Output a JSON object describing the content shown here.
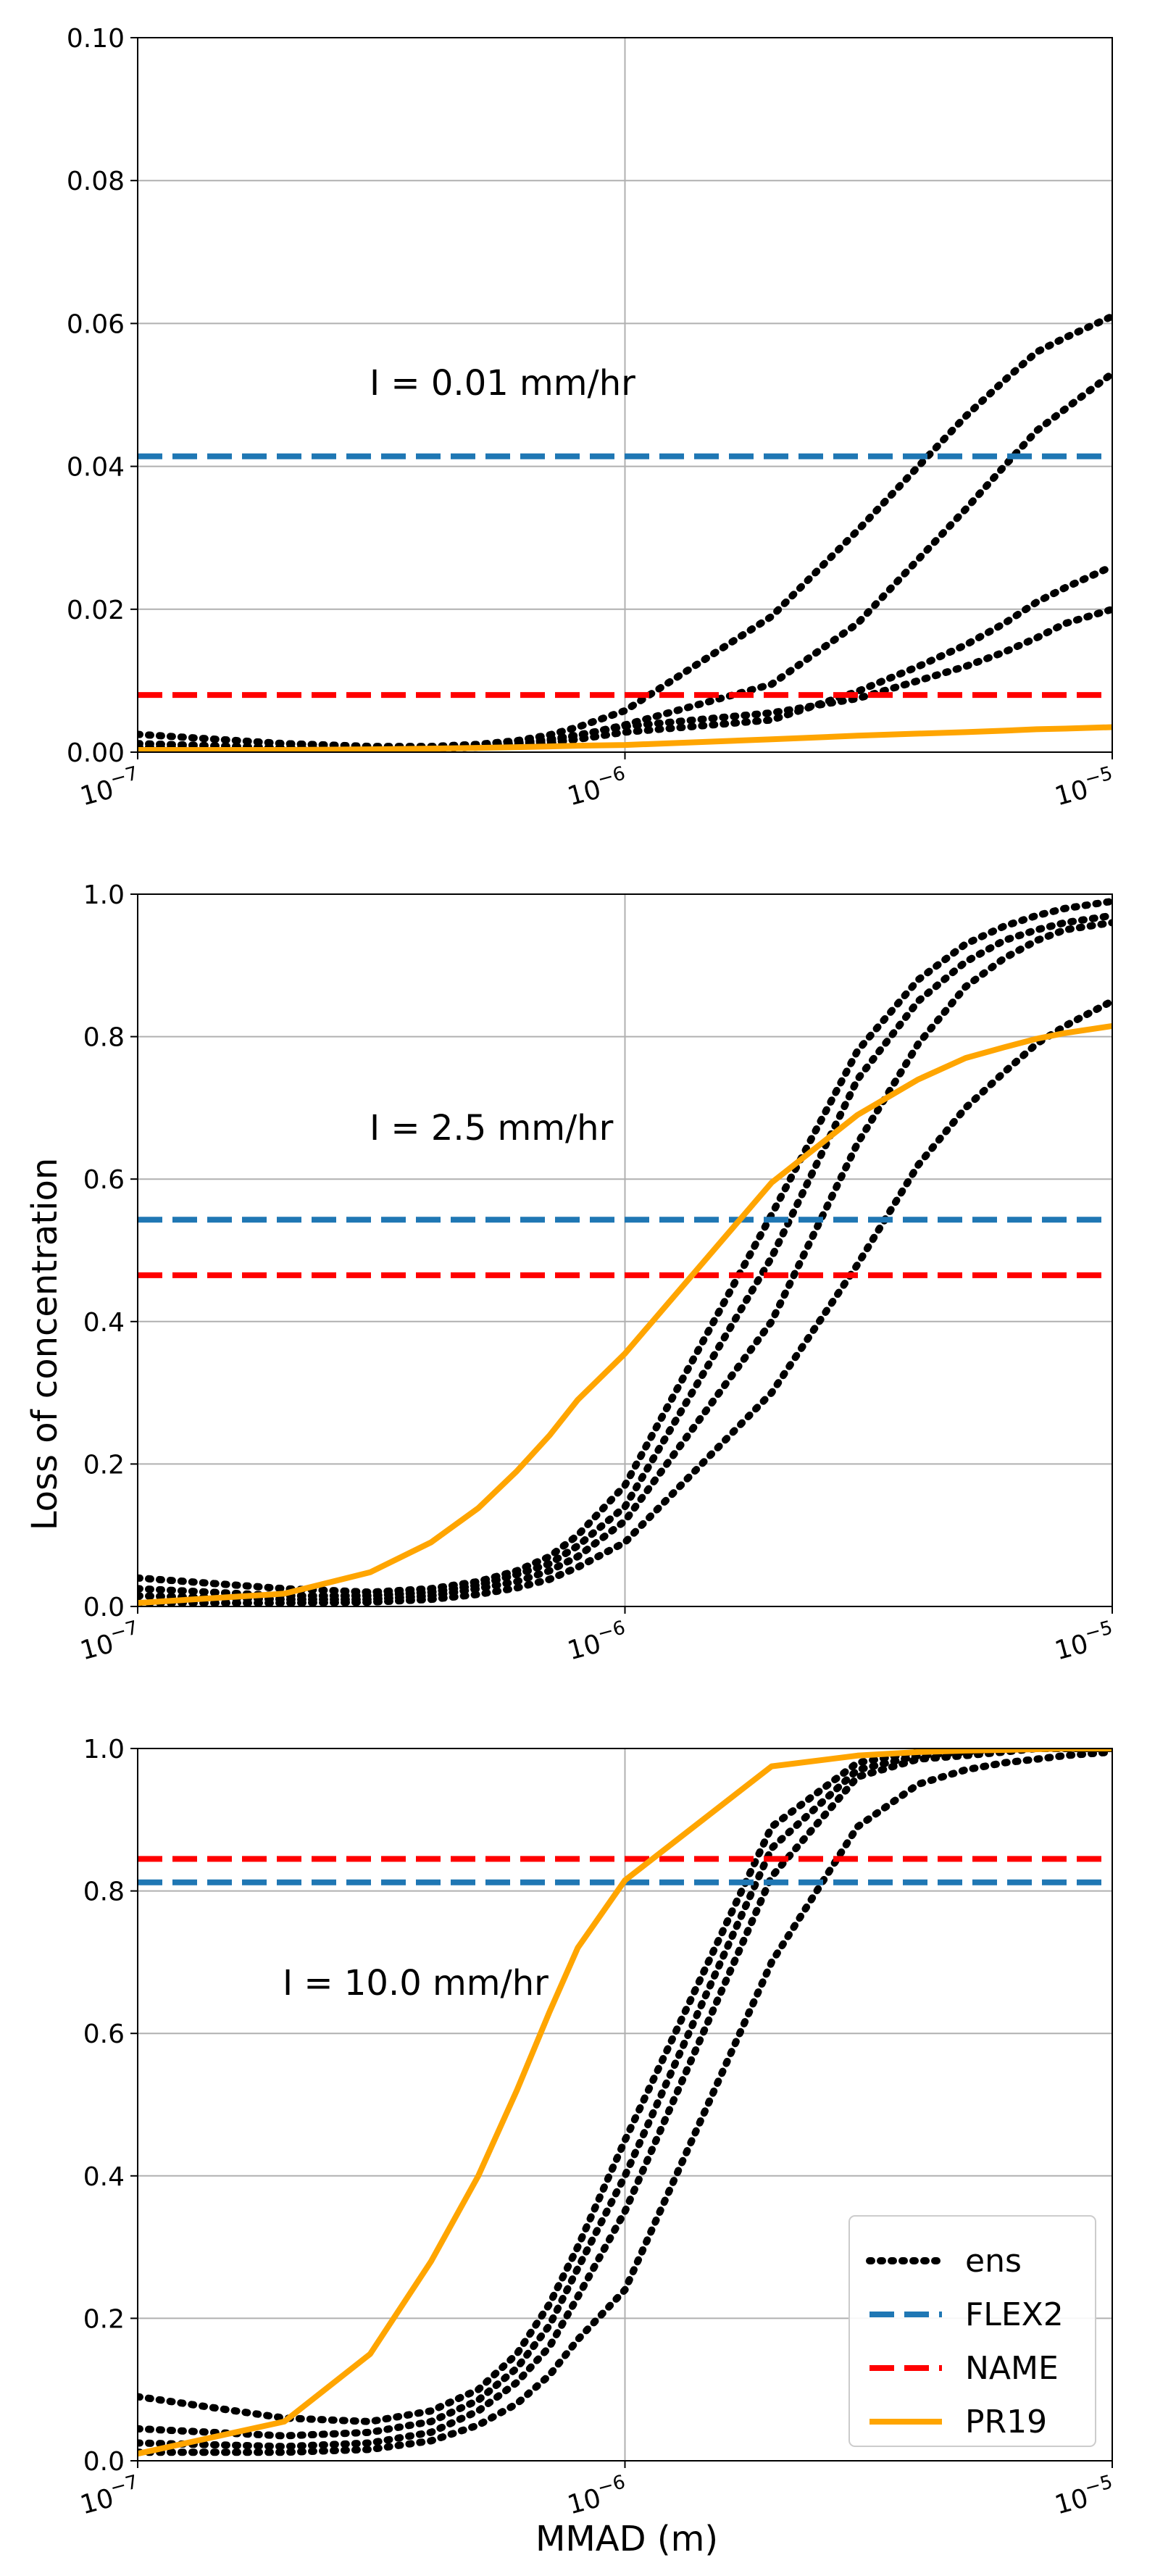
{
  "figure": {
    "ylabel": "Loss of concentration",
    "xlabel": "MMAD (m)"
  },
  "chart_data": [
    {
      "type": "line",
      "annotation": "I = 0.01 mm/hr",
      "xscale": "log",
      "xlim": [
        1e-07,
        1e-05
      ],
      "ylim": [
        0,
        0.1
      ],
      "x_ticks": [
        {
          "base": "10",
          "exp": "−7"
        },
        {
          "base": "10",
          "exp": "−6"
        },
        {
          "base": "10",
          "exp": "−5"
        }
      ],
      "y_ticks": [
        "0.00",
        "0.02",
        "0.04",
        "0.06",
        "0.08",
        "0.10"
      ],
      "y_tick_values": [
        0,
        0.02,
        0.04,
        0.06,
        0.08,
        0.1
      ],
      "grid": true,
      "x": [
        1e-07,
        2e-07,
        3e-07,
        4e-07,
        5e-07,
        6e-07,
        7e-07,
        8e-07,
        1e-06,
        2e-06,
        3e-06,
        4e-06,
        5e-06,
        6e-06,
        7e-06,
        8e-06,
        1e-05
      ],
      "series": [
        {
          "name": "ens",
          "values": [
            0.0025,
            0.0012,
            0.0008,
            0.0008,
            0.0011,
            0.0016,
            0.0024,
            0.0035,
            0.0058,
            0.019,
            0.031,
            0.04,
            0.047,
            0.052,
            0.056,
            0.058,
            0.061
          ]
        },
        {
          "name": "ens",
          "values": [
            0.0012,
            0.0006,
            0.0005,
            0.0006,
            0.0008,
            0.0011,
            0.0016,
            0.0023,
            0.0038,
            0.0095,
            0.018,
            0.027,
            0.034,
            0.04,
            0.045,
            0.048,
            0.053
          ]
        },
        {
          "name": "ens",
          "values": [
            0.0007,
            0.0004,
            0.0004,
            0.0005,
            0.0007,
            0.001,
            0.0013,
            0.0018,
            0.0028,
            0.0045,
            0.0085,
            0.012,
            0.015,
            0.018,
            0.021,
            0.023,
            0.026
          ]
        },
        {
          "name": "ens",
          "values": [
            0.0004,
            0.0003,
            0.0004,
            0.0006,
            0.0009,
            0.0013,
            0.0018,
            0.0024,
            0.0036,
            0.0055,
            0.0075,
            0.01,
            0.012,
            0.014,
            0.016,
            0.018,
            0.02
          ]
        },
        {
          "name": "FLEX2",
          "values": [
            0.0414,
            0.0414,
            0.0414,
            0.0414,
            0.0414,
            0.0414,
            0.0414,
            0.0414,
            0.0414,
            0.0414,
            0.0414,
            0.0414,
            0.0414,
            0.0414,
            0.0414,
            0.0414,
            0.0414
          ]
        },
        {
          "name": "NAME",
          "values": [
            0.008,
            0.008,
            0.008,
            0.008,
            0.008,
            0.008,
            0.008,
            0.008,
            0.008,
            0.008,
            0.008,
            0.008,
            0.008,
            0.008,
            0.008,
            0.008,
            0.008
          ]
        },
        {
          "name": "PR19",
          "values": [
            0.0003,
            0.0003,
            0.0004,
            0.0005,
            0.0006,
            0.0007,
            0.0008,
            0.0009,
            0.001,
            0.0018,
            0.0023,
            0.0026,
            0.0028,
            0.003,
            0.0032,
            0.0033,
            0.0035
          ]
        }
      ]
    },
    {
      "type": "line",
      "annotation": "I = 2.5 mm/hr",
      "xscale": "log",
      "xlim": [
        1e-07,
        1e-05
      ],
      "ylim": [
        0,
        1.0
      ],
      "x_ticks": [
        {
          "base": "10",
          "exp": "−7"
        },
        {
          "base": "10",
          "exp": "−6"
        },
        {
          "base": "10",
          "exp": "−5"
        }
      ],
      "y_ticks": [
        "0.0",
        "0.2",
        "0.4",
        "0.6",
        "0.8",
        "1.0"
      ],
      "y_tick_values": [
        0,
        0.2,
        0.4,
        0.6,
        0.8,
        1.0
      ],
      "grid": true,
      "x": [
        1e-07,
        2e-07,
        3e-07,
        4e-07,
        5e-07,
        6e-07,
        7e-07,
        8e-07,
        1e-06,
        2e-06,
        3e-06,
        4e-06,
        5e-06,
        6e-06,
        7e-06,
        8e-06,
        1e-05
      ],
      "series": [
        {
          "name": "ens",
          "values": [
            0.04,
            0.025,
            0.02,
            0.025,
            0.035,
            0.05,
            0.07,
            0.1,
            0.17,
            0.55,
            0.78,
            0.88,
            0.93,
            0.955,
            0.97,
            0.98,
            0.99
          ]
        },
        {
          "name": "ens",
          "values": [
            0.025,
            0.015,
            0.015,
            0.02,
            0.03,
            0.045,
            0.06,
            0.085,
            0.14,
            0.49,
            0.74,
            0.85,
            0.905,
            0.935,
            0.95,
            0.96,
            0.97
          ]
        },
        {
          "name": "ens",
          "values": [
            0.015,
            0.01,
            0.01,
            0.015,
            0.025,
            0.035,
            0.05,
            0.07,
            0.12,
            0.4,
            0.65,
            0.79,
            0.87,
            0.91,
            0.935,
            0.95,
            0.96
          ]
        },
        {
          "name": "ens",
          "values": [
            0.005,
            0.005,
            0.006,
            0.01,
            0.017,
            0.026,
            0.038,
            0.055,
            0.09,
            0.3,
            0.48,
            0.62,
            0.7,
            0.75,
            0.79,
            0.815,
            0.85
          ]
        },
        {
          "name": "FLEX2",
          "values": [
            0.543,
            0.543,
            0.543,
            0.543,
            0.543,
            0.543,
            0.543,
            0.543,
            0.543,
            0.543,
            0.543,
            0.543,
            0.543,
            0.543,
            0.543,
            0.543,
            0.543
          ]
        },
        {
          "name": "NAME",
          "values": [
            0.465,
            0.465,
            0.465,
            0.465,
            0.465,
            0.465,
            0.465,
            0.465,
            0.465,
            0.465,
            0.465,
            0.465,
            0.465,
            0.465,
            0.465,
            0.465,
            0.465
          ]
        },
        {
          "name": "PR19",
          "values": [
            0.005,
            0.018,
            0.048,
            0.09,
            0.138,
            0.19,
            0.24,
            0.29,
            0.355,
            0.595,
            0.69,
            0.74,
            0.77,
            0.785,
            0.797,
            0.805,
            0.815
          ]
        }
      ]
    },
    {
      "type": "line",
      "annotation": "I = 10.0 mm/hr",
      "xscale": "log",
      "xlim": [
        1e-07,
        1e-05
      ],
      "ylim": [
        0,
        1.0
      ],
      "x_ticks": [
        {
          "base": "10",
          "exp": "−7"
        },
        {
          "base": "10",
          "exp": "−6"
        },
        {
          "base": "10",
          "exp": "−5"
        }
      ],
      "y_ticks": [
        "0.0",
        "0.2",
        "0.4",
        "0.6",
        "0.8",
        "1.0"
      ],
      "y_tick_values": [
        0,
        0.2,
        0.4,
        0.6,
        0.8,
        1.0
      ],
      "grid": true,
      "legend": {
        "position": "lower-right",
        "entries": [
          "ens",
          "FLEX2",
          "NAME",
          "PR19"
        ]
      },
      "x": [
        1e-07,
        2e-07,
        3e-07,
        4e-07,
        5e-07,
        6e-07,
        7e-07,
        8e-07,
        1e-06,
        2e-06,
        3e-06,
        4e-06,
        5e-06,
        6e-06,
        7e-06,
        8e-06,
        1e-05
      ],
      "series": [
        {
          "name": "ens",
          "values": [
            0.09,
            0.06,
            0.055,
            0.07,
            0.1,
            0.15,
            0.22,
            0.3,
            0.45,
            0.89,
            0.98,
            0.995,
            1.0,
            1.0,
            1.0,
            1.0,
            1.0
          ]
        },
        {
          "name": "ens",
          "values": [
            0.045,
            0.035,
            0.04,
            0.055,
            0.085,
            0.13,
            0.19,
            0.27,
            0.4,
            0.86,
            0.97,
            0.99,
            0.995,
            1.0,
            1.0,
            1.0,
            1.0
          ]
        },
        {
          "name": "ens",
          "values": [
            0.025,
            0.02,
            0.025,
            0.04,
            0.07,
            0.11,
            0.16,
            0.23,
            0.35,
            0.82,
            0.96,
            0.985,
            0.99,
            0.995,
            1.0,
            1.0,
            1.0
          ]
        },
        {
          "name": "ens",
          "values": [
            0.012,
            0.012,
            0.016,
            0.028,
            0.05,
            0.08,
            0.12,
            0.17,
            0.24,
            0.7,
            0.89,
            0.95,
            0.97,
            0.98,
            0.985,
            0.99,
            0.995
          ]
        },
        {
          "name": "FLEX2",
          "values": [
            0.812,
            0.812,
            0.812,
            0.812,
            0.812,
            0.812,
            0.812,
            0.812,
            0.812,
            0.812,
            0.812,
            0.812,
            0.812,
            0.812,
            0.812,
            0.812,
            0.812
          ]
        },
        {
          "name": "NAME",
          "values": [
            0.845,
            0.845,
            0.845,
            0.845,
            0.845,
            0.845,
            0.845,
            0.845,
            0.845,
            0.845,
            0.845,
            0.845,
            0.845,
            0.845,
            0.845,
            0.845,
            0.845
          ]
        },
        {
          "name": "PR19",
          "values": [
            0.01,
            0.055,
            0.15,
            0.28,
            0.4,
            0.52,
            0.63,
            0.72,
            0.815,
            0.975,
            0.99,
            0.995,
            0.997,
            0.998,
            0.999,
            1.0,
            1.0
          ]
        }
      ]
    }
  ],
  "styles": {
    "ens": {
      "color": "#000000",
      "dash": "dotted"
    },
    "FLEX2": {
      "color": "#1f77b4",
      "dash": "dashed"
    },
    "NAME": {
      "color": "#ff0000",
      "dash": "dashed"
    },
    "PR19": {
      "color": "#ffa500",
      "dash": "solid"
    },
    "grid_color": "#b0b0b0"
  }
}
